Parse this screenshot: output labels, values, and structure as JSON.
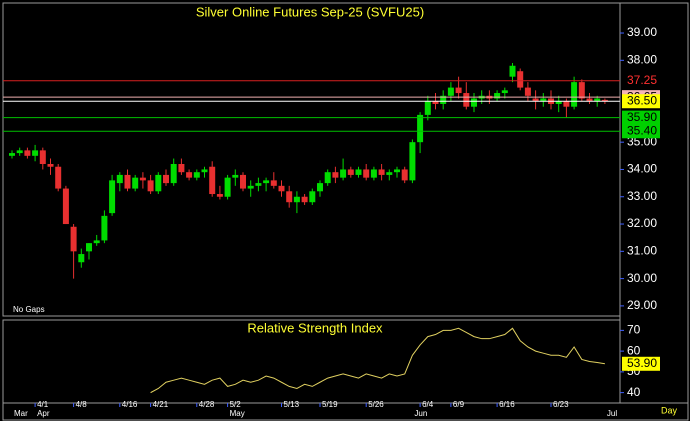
{
  "chart_data": {
    "type": "candlestick",
    "title": "Silver Online Futures Sep-25 (SVFU25)",
    "note": "No Gaps",
    "x_unit": "Day",
    "categories": [
      null,
      null,
      null,
      "4/1",
      null,
      null,
      null,
      null,
      "4/8",
      null,
      null,
      null,
      null,
      null,
      "4/16",
      null,
      null,
      null,
      "4/21",
      null,
      null,
      null,
      null,
      null,
      "4/28",
      null,
      null,
      null,
      "5/2",
      null,
      null,
      null,
      null,
      null,
      null,
      "5/13",
      null,
      null,
      null,
      null,
      "5/19",
      null,
      null,
      null,
      null,
      null,
      "5/26",
      null,
      null,
      null,
      null,
      null,
      null,
      "6/4",
      null,
      null,
      null,
      "6/9",
      null,
      null,
      null,
      null,
      null,
      "6/16",
      null,
      null,
      null,
      null,
      null,
      null,
      "6/23",
      null,
      null,
      null,
      null,
      null,
      null,
      null
    ],
    "months": [
      "Mar",
      null,
      null,
      "Apr",
      null,
      null,
      null,
      null,
      null,
      null,
      null,
      null,
      null,
      null,
      null,
      null,
      null,
      null,
      null,
      null,
      null,
      null,
      null,
      null,
      null,
      null,
      null,
      null,
      "May",
      null,
      null,
      null,
      null,
      null,
      null,
      null,
      null,
      null,
      null,
      null,
      null,
      null,
      null,
      null,
      null,
      null,
      null,
      null,
      null,
      null,
      null,
      null,
      "Jun",
      null,
      null,
      null,
      null,
      null,
      null,
      null,
      null,
      null,
      null,
      null,
      null,
      null,
      null,
      null,
      null,
      null,
      null,
      null,
      null,
      null,
      null,
      null,
      null,
      "Jul"
    ],
    "open": [
      34.5,
      34.6,
      34.7,
      34.5,
      34.7,
      34.2,
      34.1,
      33.3,
      31.9,
      30.6,
      31.0,
      31.3,
      31.4,
      32.4,
      33.5,
      33.8,
      33.3,
      33.7,
      33.6,
      33.2,
      33.8,
      33.5,
      34.2,
      33.9,
      33.7,
      33.9,
      34.1,
      33.1,
      33.0,
      33.7,
      33.8,
      33.3,
      33.4,
      33.5,
      33.6,
      33.4,
      33.2,
      32.8,
      33.0,
      32.8,
      33.2,
      33.5,
      33.9,
      33.7,
      34.0,
      33.8,
      34.0,
      33.7,
      34.0,
      33.8,
      33.9,
      34.0,
      33.6,
      35.0,
      36.0,
      36.5,
      36.4,
      36.7,
      37.0,
      36.8,
      36.3,
      36.6,
      36.7,
      36.6,
      36.8,
      37.4,
      37.6,
      37.0,
      36.6,
      36.5,
      36.6,
      36.4,
      36.5,
      36.3,
      37.2,
      36.6,
      36.5,
      36.55
    ],
    "high": [
      34.7,
      34.8,
      34.8,
      34.9,
      34.8,
      34.4,
      34.2,
      33.4,
      32.0,
      31.1,
      31.3,
      31.6,
      32.5,
      33.8,
      33.9,
      34.0,
      33.8,
      33.9,
      33.8,
      33.9,
      34.0,
      34.4,
      34.4,
      34.0,
      34.0,
      34.1,
      34.3,
      33.4,
      33.8,
      34.0,
      33.9,
      33.6,
      33.7,
      33.7,
      33.9,
      33.6,
      33.4,
      33.2,
      33.1,
      33.3,
      33.6,
      34.0,
      34.1,
      34.4,
      34.1,
      34.1,
      34.2,
      34.1,
      34.2,
      34.0,
      34.1,
      34.1,
      35.1,
      36.1,
      36.7,
      36.8,
      36.9,
      37.2,
      37.4,
      37.2,
      36.8,
      36.9,
      36.9,
      36.9,
      37.0,
      37.9,
      37.7,
      37.2,
      36.9,
      36.8,
      36.9,
      36.7,
      36.6,
      37.4,
      37.3,
      36.8,
      36.7,
      36.6
    ],
    "low": [
      34.4,
      34.5,
      34.4,
      34.3,
      34.0,
      33.8,
      33.2,
      32.0,
      30.0,
      30.4,
      30.7,
      31.2,
      31.3,
      32.3,
      33.2,
      33.2,
      33.2,
      33.3,
      33.1,
      33.1,
      33.4,
      33.4,
      33.8,
      33.6,
      33.6,
      33.7,
      33.0,
      32.9,
      32.9,
      33.4,
      33.2,
      33.0,
      33.2,
      33.2,
      33.3,
      33.0,
      32.6,
      32.4,
      32.7,
      32.7,
      33.0,
      33.4,
      33.5,
      33.6,
      33.7,
      33.7,
      33.6,
      33.6,
      33.6,
      33.6,
      33.7,
      33.5,
      33.5,
      34.6,
      35.8,
      36.2,
      36.2,
      36.5,
      36.6,
      36.2,
      36.1,
      36.4,
      36.4,
      36.5,
      36.6,
      37.2,
      36.9,
      36.5,
      36.2,
      36.3,
      36.2,
      36.1,
      35.9,
      36.2,
      36.5,
      36.4,
      36.3,
      36.4
    ],
    "close": [
      34.6,
      34.7,
      34.5,
      34.7,
      34.2,
      34.1,
      33.3,
      32.0,
      31.0,
      30.9,
      31.3,
      31.4,
      32.3,
      33.6,
      33.8,
      33.3,
      33.7,
      33.6,
      33.2,
      33.8,
      33.5,
      34.2,
      33.9,
      33.7,
      33.9,
      34.0,
      33.1,
      33.0,
      33.7,
      33.8,
      33.3,
      33.4,
      33.5,
      33.6,
      33.4,
      33.2,
      32.8,
      33.0,
      32.8,
      33.2,
      33.5,
      33.9,
      33.7,
      34.0,
      33.8,
      34.0,
      33.7,
      34.0,
      33.8,
      33.9,
      34.0,
      33.6,
      35.0,
      36.0,
      36.5,
      36.4,
      36.7,
      37.0,
      36.8,
      36.3,
      36.6,
      36.7,
      36.6,
      36.8,
      36.9,
      37.8,
      37.0,
      36.7,
      36.5,
      36.6,
      36.4,
      36.5,
      36.3,
      37.2,
      36.6,
      36.5,
      36.6,
      36.5
    ],
    "up_color": "#00dd00",
    "down_color": "#e83030",
    "ylim": [
      28.63,
      40.1
    ],
    "yticks": [
      {
        "value": 29,
        "label": "29.00"
      },
      {
        "value": 30,
        "label": "30.00"
      },
      {
        "value": 31,
        "label": "31.00"
      },
      {
        "value": 32,
        "label": "32.00"
      },
      {
        "value": 33,
        "label": "33.00"
      },
      {
        "value": 34,
        "label": "34.00"
      },
      {
        "value": 35,
        "label": "35.00"
      },
      {
        "value": 38,
        "label": "38.00"
      },
      {
        "value": 39,
        "label": "39.00"
      }
    ],
    "levels": [
      {
        "value": 37.25,
        "label": "37.25",
        "color": "#d82020",
        "label_bg": "#000000",
        "label_color": "#ff3030"
      },
      {
        "value": 36.65,
        "label": "36.65",
        "color": "#f0b0b0",
        "label_bg": "#f4b4b4",
        "label_color": "#000000"
      },
      {
        "value": 36.5,
        "label": "36.50",
        "color": "#ffffff",
        "label_bg": "#ffff00",
        "label_color": "#000000"
      },
      {
        "value": 35.9,
        "label": "35.90",
        "color": "#00c000",
        "label_bg": "#00d000",
        "label_color": "#000000"
      },
      {
        "value": 35.4,
        "label": "35.40",
        "color": "#00c000",
        "label_bg": "#00d000",
        "label_color": "#000000"
      }
    ],
    "rsi": {
      "title": "Relative Strength Index",
      "color": "#e0d060",
      "ylim": [
        35,
        75
      ],
      "yticks": [
        40,
        50,
        60,
        70
      ],
      "values": [
        null,
        null,
        null,
        null,
        null,
        null,
        null,
        null,
        null,
        null,
        null,
        null,
        null,
        null,
        null,
        null,
        null,
        null,
        40,
        42,
        45,
        46,
        47,
        46,
        45,
        44,
        46,
        47,
        43,
        44,
        46,
        45,
        46,
        48,
        47,
        45,
        43,
        42,
        44,
        43,
        45,
        47,
        48,
        49,
        48,
        47,
        49,
        48,
        47,
        49,
        48,
        49,
        58,
        63,
        67,
        68,
        70,
        70,
        71,
        69,
        67,
        66,
        66,
        67,
        68,
        71,
        65,
        62,
        60,
        59,
        58,
        58,
        57,
        62,
        56,
        55,
        54.5,
        53.9
      ],
      "value_labels": [
        null,
        null,
        null,
        null,
        null,
        null,
        null,
        null,
        null,
        null,
        null,
        null,
        null,
        null,
        null,
        null,
        null,
        null,
        null,
        null,
        null,
        null,
        null,
        null,
        null,
        null,
        null,
        null,
        null,
        null,
        null,
        null,
        null,
        null,
        null,
        null,
        null,
        null,
        null,
        null,
        null,
        null,
        null,
        null,
        null,
        null,
        null,
        null,
        null,
        null,
        null,
        null,
        null,
        null,
        null,
        null,
        null,
        null,
        null,
        null,
        null,
        null,
        null,
        null,
        null,
        null,
        null,
        null,
        null,
        null,
        null,
        null,
        null,
        null,
        null,
        null,
        null,
        "53.90"
      ]
    }
  }
}
